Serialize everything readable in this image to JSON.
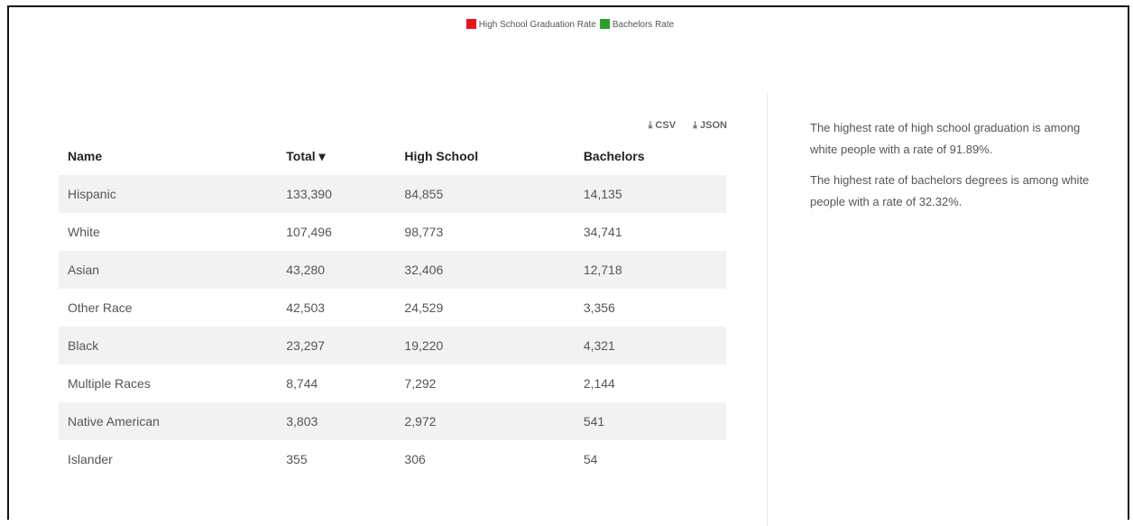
{
  "legend": [
    {
      "label": "High School Graduation Rate",
      "color": "#e8141c"
    },
    {
      "label": "Bachelors Rate",
      "color": "#2ca02c"
    }
  ],
  "downloads": [
    "CSV",
    "JSON"
  ],
  "table": {
    "columns": [
      "Name",
      "Total",
      "High School",
      "Bachelors"
    ],
    "rows": [
      [
        "Hispanic",
        "133,390",
        "84,855",
        "14,135"
      ],
      [
        "White",
        "107,496",
        "98,773",
        "34,741"
      ],
      [
        "Asian",
        "43,280",
        "32,406",
        "12,718"
      ],
      [
        "Other Race",
        "42,503",
        "24,529",
        "3,356"
      ],
      [
        "Black",
        "23,297",
        "19,220",
        "4,321"
      ],
      [
        "Multiple Races",
        "8,744",
        "7,292",
        "2,144"
      ],
      [
        "Native American",
        "3,803",
        "2,972",
        "541"
      ],
      [
        "Islander",
        "355",
        "306",
        "54"
      ]
    ]
  },
  "paragraphs": [
    "The highest rate of high school graduation is among white people with a rate of 91.89%.",
    "The highest rate of bachelors degrees is among white people with a rate of 32.32%."
  ]
}
